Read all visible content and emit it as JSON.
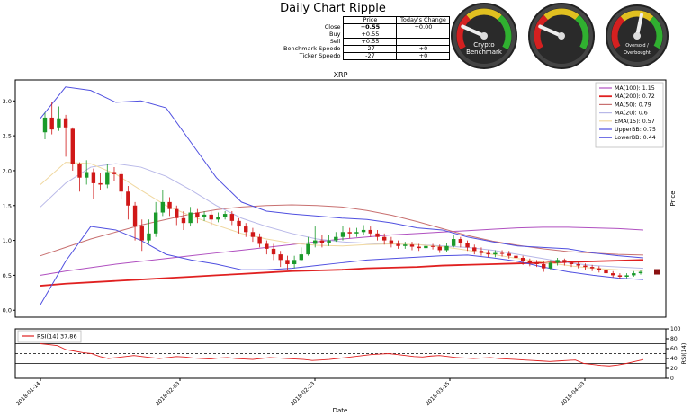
{
  "header": {
    "title": "Daily Chart Ripple",
    "table": {
      "columns": [
        "",
        "Price",
        "Today's Change"
      ],
      "rows": [
        {
          "label": "Close",
          "price": "+0.55",
          "change": "+0.00"
        },
        {
          "label": "Buy",
          "price": "+0.55",
          "change": ""
        },
        {
          "label": "Sell",
          "price": "+0.55",
          "change": ""
        },
        {
          "label": "Benchmark Speedo",
          "price": "-27",
          "change": "+0"
        },
        {
          "label": "Ticker Speedo",
          "price": "-27",
          "change": "+0"
        }
      ]
    },
    "gauges": [
      {
        "label": "Crypto Benchmark",
        "level": -0.55
      },
      {
        "label": "",
        "level": -0.55
      },
      {
        "label": "Oversold / Overbought",
        "level": 0.1
      }
    ]
  },
  "chart_data": [
    {
      "type": "line",
      "title": "XRP",
      "ylabel": "Price",
      "xlabel": "Date",
      "ylim": [
        -0.1,
        3.3
      ],
      "yticks": [
        "0.0",
        "0.5",
        "1.0",
        "1.5",
        "2.0",
        "2.5",
        "3.0"
      ],
      "xticks": [
        "2018-01-14",
        "2018-02-03",
        "2018-02-23",
        "2018-03-15",
        "2018-04-03"
      ],
      "legend_position": "top-right",
      "candles": [
        [
          2.55,
          2.76,
          2.83,
          2.45
        ],
        [
          2.76,
          2.59,
          2.98,
          2.52
        ],
        [
          2.62,
          2.75,
          2.92,
          2.57
        ],
        [
          2.75,
          2.62,
          2.8,
          2.2
        ],
        [
          2.6,
          2.1,
          2.62,
          2.0
        ],
        [
          2.1,
          1.9,
          2.12,
          1.7
        ],
        [
          1.9,
          1.98,
          2.15,
          1.8
        ],
        [
          1.98,
          1.82,
          2.03,
          1.6
        ],
        [
          1.82,
          1.8,
          1.96,
          1.72
        ],
        [
          1.8,
          1.98,
          2.1,
          1.75
        ],
        [
          1.98,
          1.95,
          2.05,
          1.85
        ],
        [
          1.95,
          1.7,
          2.0,
          1.6
        ],
        [
          1.7,
          1.5,
          1.78,
          1.3
        ],
        [
          1.5,
          1.2,
          1.55,
          1.0
        ],
        [
          1.2,
          1.0,
          1.3,
          0.85
        ],
        [
          1.0,
          1.1,
          1.3,
          0.95
        ],
        [
          1.1,
          1.4,
          1.55,
          1.05
        ],
        [
          1.4,
          1.55,
          1.72,
          1.35
        ],
        [
          1.55,
          1.45,
          1.62,
          1.35
        ],
        [
          1.45,
          1.32,
          1.5,
          1.22
        ],
        [
          1.32,
          1.25,
          1.42,
          1.15
        ],
        [
          1.25,
          1.4,
          1.48,
          1.2
        ],
        [
          1.4,
          1.33,
          1.45,
          1.25
        ],
        [
          1.33,
          1.37,
          1.42,
          1.28
        ],
        [
          1.37,
          1.3,
          1.42,
          1.22
        ],
        [
          1.3,
          1.33,
          1.4,
          1.26
        ],
        [
          1.33,
          1.38,
          1.42,
          1.3
        ],
        [
          1.38,
          1.28,
          1.42,
          1.22
        ],
        [
          1.28,
          1.2,
          1.32,
          1.1
        ],
        [
          1.2,
          1.12,
          1.25,
          1.05
        ],
        [
          1.12,
          1.05,
          1.18,
          0.98
        ],
        [
          1.05,
          0.95,
          1.1,
          0.9
        ],
        [
          0.95,
          0.88,
          1.0,
          0.8
        ],
        [
          0.88,
          0.8,
          0.95,
          0.72
        ],
        [
          0.8,
          0.72,
          0.85,
          0.62
        ],
        [
          0.72,
          0.66,
          0.78,
          0.58
        ],
        [
          0.66,
          0.72,
          0.78,
          0.6
        ],
        [
          0.72,
          0.8,
          0.9,
          0.7
        ],
        [
          0.8,
          0.95,
          1.05,
          0.78
        ],
        [
          0.95,
          1.0,
          1.2,
          0.9
        ],
        [
          1.0,
          0.96,
          1.08,
          0.9
        ],
        [
          0.96,
          1.0,
          1.08,
          0.92
        ],
        [
          1.0,
          1.05,
          1.12,
          0.98
        ],
        [
          1.05,
          1.12,
          1.2,
          1.0
        ],
        [
          1.12,
          1.1,
          1.18,
          1.03
        ],
        [
          1.1,
          1.12,
          1.18,
          1.05
        ],
        [
          1.12,
          1.15,
          1.22,
          1.08
        ],
        [
          1.15,
          1.1,
          1.2,
          1.05
        ],
        [
          1.1,
          1.05,
          1.15,
          1.0
        ],
        [
          1.05,
          1.0,
          1.1,
          0.94
        ],
        [
          1.0,
          0.95,
          1.05,
          0.9
        ],
        [
          0.95,
          0.92,
          1.0,
          0.88
        ],
        [
          0.92,
          0.94,
          0.98,
          0.88
        ],
        [
          0.94,
          0.91,
          0.98,
          0.86
        ],
        [
          0.91,
          0.89,
          0.95,
          0.85
        ],
        [
          0.89,
          0.92,
          0.96,
          0.86
        ],
        [
          0.92,
          0.91,
          0.95,
          0.87
        ],
        [
          0.91,
          0.86,
          0.94,
          0.82
        ],
        [
          0.86,
          0.92,
          0.96,
          0.84
        ],
        [
          0.92,
          1.02,
          1.08,
          0.9
        ],
        [
          1.02,
          0.96,
          1.05,
          0.9
        ],
        [
          0.96,
          0.9,
          1.0,
          0.85
        ],
        [
          0.9,
          0.85,
          0.94,
          0.8
        ],
        [
          0.85,
          0.82,
          0.9,
          0.78
        ],
        [
          0.82,
          0.8,
          0.86,
          0.76
        ],
        [
          0.8,
          0.82,
          0.86,
          0.76
        ],
        [
          0.82,
          0.81,
          0.86,
          0.77
        ],
        [
          0.81,
          0.78,
          0.85,
          0.74
        ],
        [
          0.78,
          0.75,
          0.82,
          0.7
        ],
        [
          0.75,
          0.7,
          0.78,
          0.65
        ],
        [
          0.7,
          0.68,
          0.74,
          0.63
        ],
        [
          0.68,
          0.66,
          0.72,
          0.62
        ],
        [
          0.66,
          0.6,
          0.7,
          0.55
        ],
        [
          0.6,
          0.68,
          0.72,
          0.58
        ],
        [
          0.68,
          0.72,
          0.75,
          0.64
        ],
        [
          0.72,
          0.68,
          0.74,
          0.64
        ],
        [
          0.68,
          0.66,
          0.71,
          0.62
        ],
        [
          0.66,
          0.64,
          0.69,
          0.6
        ],
        [
          0.64,
          0.62,
          0.67,
          0.58
        ],
        [
          0.62,
          0.6,
          0.65,
          0.56
        ],
        [
          0.6,
          0.58,
          0.63,
          0.54
        ],
        [
          0.58,
          0.53,
          0.61,
          0.5
        ],
        [
          0.53,
          0.5,
          0.56,
          0.47
        ],
        [
          0.5,
          0.48,
          0.53,
          0.45
        ],
        [
          0.48,
          0.5,
          0.53,
          0.46
        ],
        [
          0.5,
          0.53,
          0.56,
          0.48
        ],
        [
          0.53,
          0.55,
          0.57,
          0.51
        ]
      ],
      "series": [
        {
          "name": "MA(100): 1.15",
          "color": "#b050c0",
          "values": [
            0.5,
            0.56,
            0.61,
            0.66,
            0.7,
            0.74,
            0.78,
            0.82,
            0.86,
            0.9,
            0.94,
            0.98,
            1.02,
            1.05,
            1.08,
            1.1,
            1.12,
            1.14,
            1.16,
            1.18,
            1.19,
            1.19,
            1.18,
            1.17,
            1.15
          ]
        },
        {
          "name": "MA(200): 0.72",
          "color": "#e02020",
          "values": [
            0.35,
            0.38,
            0.4,
            0.42,
            0.44,
            0.46,
            0.48,
            0.5,
            0.52,
            0.54,
            0.56,
            0.57,
            0.58,
            0.6,
            0.61,
            0.62,
            0.64,
            0.65,
            0.66,
            0.67,
            0.68,
            0.69,
            0.7,
            0.71,
            0.72
          ]
        },
        {
          "name": "MA(50): 0.79",
          "color": "#c87070",
          "values": [
            0.78,
            0.9,
            1.02,
            1.12,
            1.22,
            1.3,
            1.38,
            1.44,
            1.48,
            1.5,
            1.51,
            1.5,
            1.48,
            1.43,
            1.36,
            1.27,
            1.17,
            1.07,
            0.99,
            0.93,
            0.88,
            0.84,
            0.82,
            0.8,
            0.79
          ]
        },
        {
          "name": "MA(20): 0.6",
          "color": "#b8b8e8",
          "values": [
            1.48,
            1.82,
            2.05,
            2.1,
            2.05,
            1.92,
            1.72,
            1.5,
            1.32,
            1.2,
            1.1,
            1.02,
            0.98,
            0.96,
            0.95,
            0.94,
            0.92,
            0.9,
            0.86,
            0.8,
            0.74,
            0.68,
            0.64,
            0.62,
            0.6
          ]
        },
        {
          "name": "EMA(15): 0.57",
          "color": "#f0d8a0",
          "values": [
            1.8,
            2.12,
            2.1,
            1.95,
            1.72,
            1.5,
            1.35,
            1.22,
            1.1,
            1.02,
            0.96,
            0.93,
            0.92,
            0.94,
            0.95,
            0.94,
            0.91,
            0.86,
            0.8,
            0.74,
            0.69,
            0.64,
            0.6,
            0.58,
            0.57
          ]
        },
        {
          "name": "UpperBB: 0.75",
          "color": "#5050e0",
          "values": [
            2.75,
            3.2,
            3.15,
            2.98,
            3.0,
            2.9,
            2.4,
            1.9,
            1.55,
            1.42,
            1.38,
            1.35,
            1.32,
            1.3,
            1.25,
            1.18,
            1.15,
            1.05,
            0.98,
            0.92,
            0.9,
            0.88,
            0.82,
            0.78,
            0.75
          ]
        },
        {
          "name": "LowerBB: 0.44",
          "color": "#5050e0",
          "values": [
            0.08,
            0.7,
            1.2,
            1.15,
            1.0,
            0.8,
            0.72,
            0.66,
            0.58,
            0.58,
            0.6,
            0.64,
            0.68,
            0.72,
            0.74,
            0.76,
            0.78,
            0.79,
            0.75,
            0.7,
            0.62,
            0.55,
            0.5,
            0.46,
            0.44
          ]
        }
      ],
      "last_marker": 0.55
    },
    {
      "type": "line",
      "title": "",
      "ylabel": "RSI(14)",
      "ylim": [
        0,
        100
      ],
      "yticks": [
        "0",
        "20",
        "40",
        "60",
        "80",
        "100"
      ],
      "legend_position": "top-left",
      "reference_lines": [
        30,
        50,
        70
      ],
      "series": [
        {
          "name": "RSI(14) 37.86",
          "color": "#e02020",
          "values": [
            70,
            68,
            66,
            58,
            55,
            52,
            50,
            44,
            40,
            42,
            44,
            46,
            44,
            42,
            40,
            42,
            44,
            43,
            41,
            40,
            39,
            41,
            42,
            40,
            39,
            38,
            40,
            42,
            41,
            40,
            39,
            38,
            36,
            37,
            38,
            40,
            42,
            44,
            46,
            48,
            49,
            50,
            48,
            46,
            44,
            43,
            45,
            46,
            44,
            42,
            41,
            40,
            41,
            42,
            40,
            39,
            38,
            37,
            36,
            35,
            34,
            35,
            36,
            37,
            30,
            28,
            26,
            25,
            27,
            30,
            34,
            37.86
          ]
        }
      ]
    }
  ]
}
